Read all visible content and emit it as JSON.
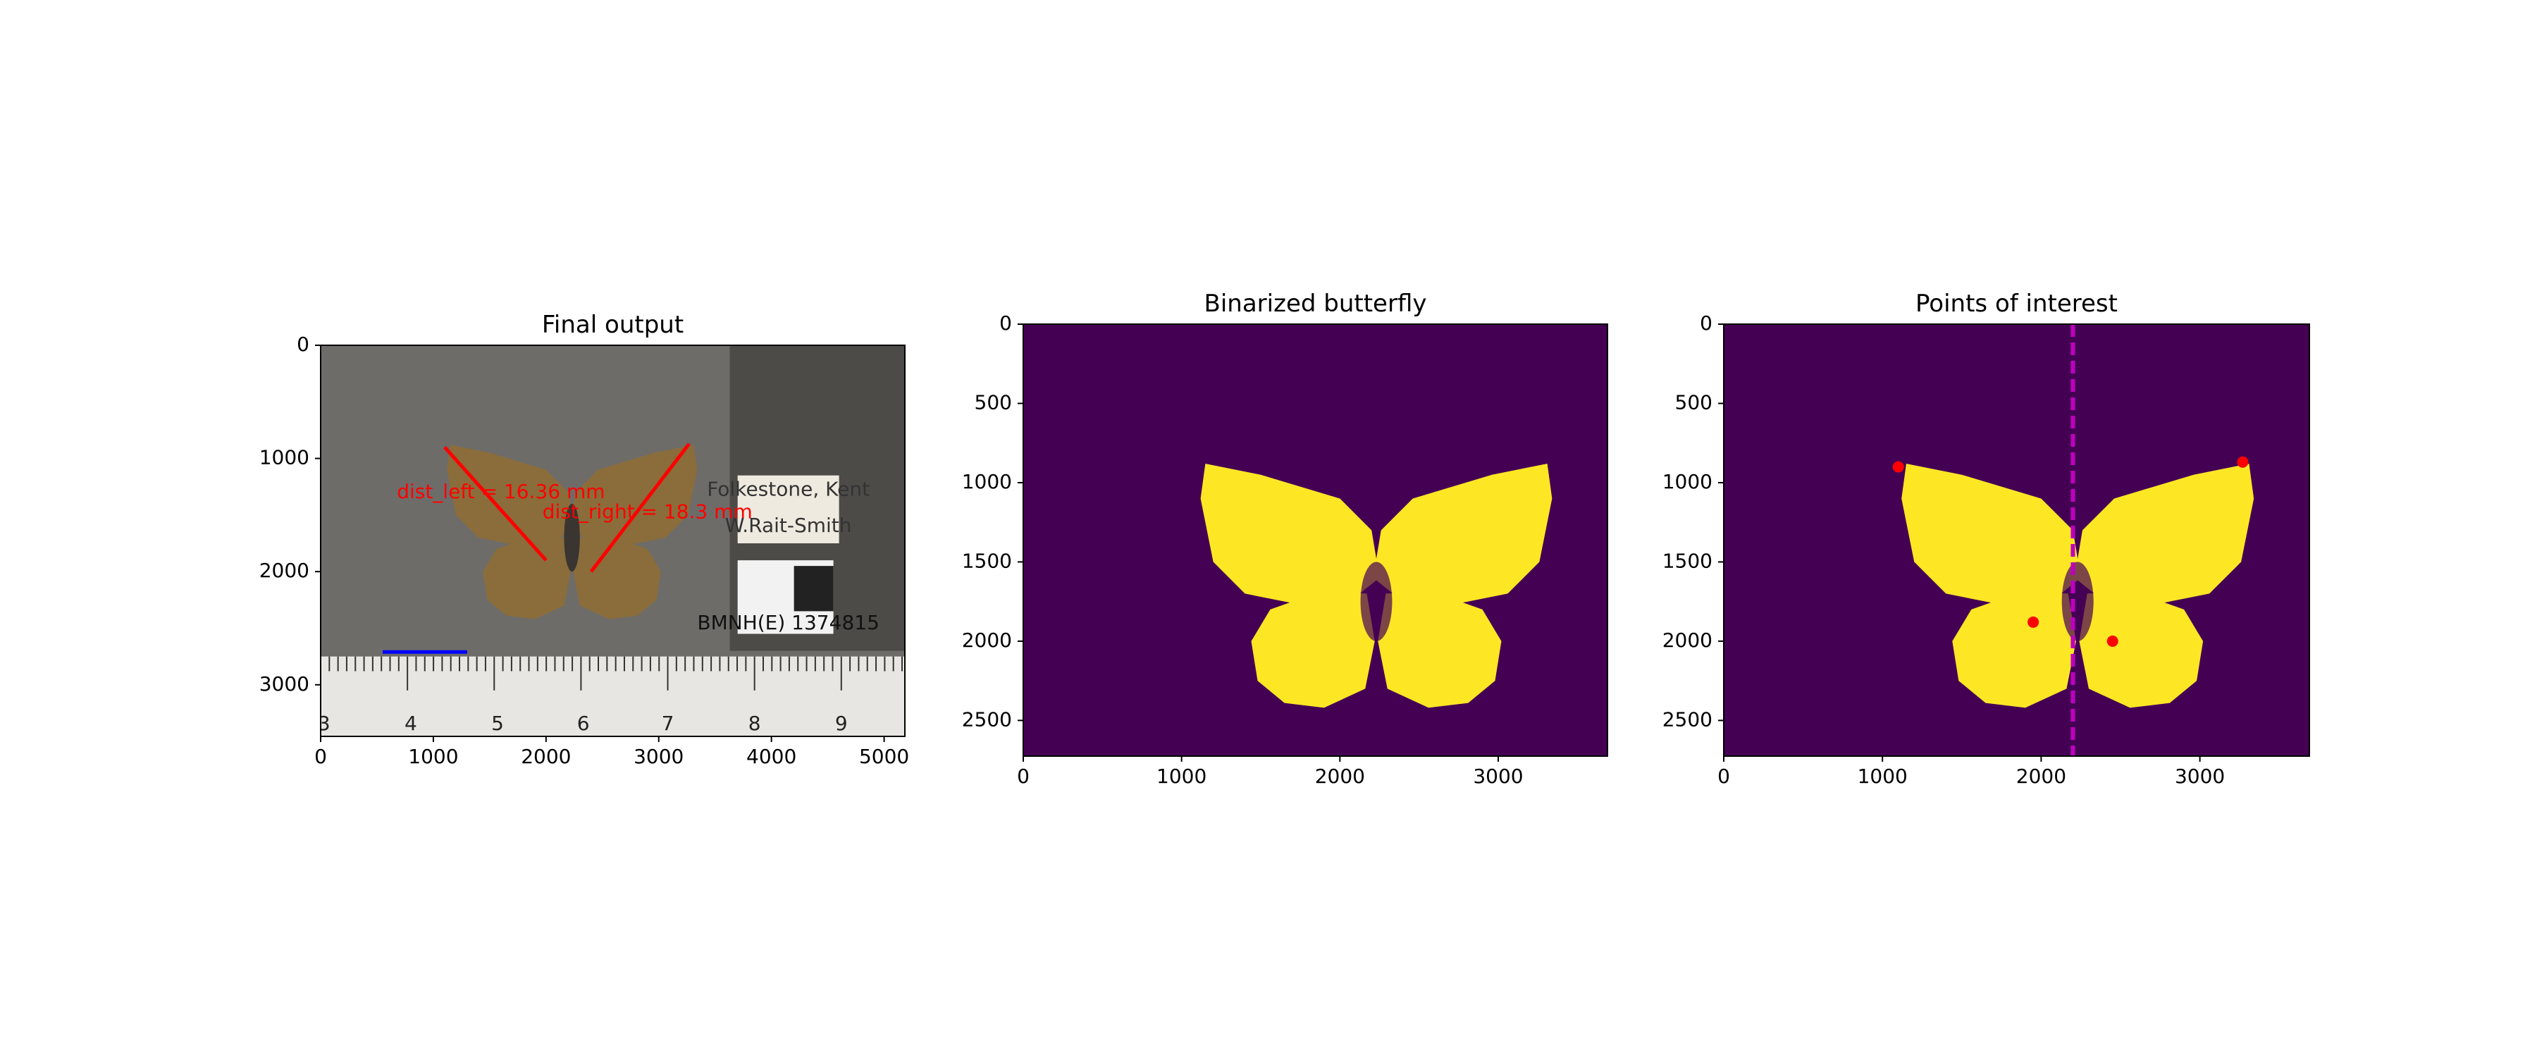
{
  "chart_data": [
    {
      "type": "photo",
      "title": "Final output",
      "xlim": [
        0,
        5184
      ],
      "ylim": [
        3456,
        0
      ],
      "xticks": [
        0,
        1000,
        2000,
        3000,
        4000,
        5000
      ],
      "yticks": [
        0,
        1000,
        2000,
        3000
      ],
      "segments": [
        {
          "x": [
            1100,
            2000
          ],
          "y": [
            900,
            1900
          ],
          "color": "#ff0000"
        },
        {
          "x": [
            3270,
            2400
          ],
          "y": [
            870,
            2000
          ],
          "color": "#ff0000"
        },
        {
          "x": [
            550,
            1300
          ],
          "y": [
            2710,
            2710
          ],
          "color": "#0000ff"
        }
      ],
      "annotations": [
        {
          "text": "dist_left = 16.36 mm",
          "x": 1600,
          "y": 1300,
          "color": "#ff0000"
        },
        {
          "text": "dist_right = 18.3 mm",
          "x": 2900,
          "y": 1480,
          "color": "#ff0000"
        },
        {
          "text": "Folkestone, Kent",
          "x": 4150,
          "y": 1280,
          "color": "#333333"
        },
        {
          "text": "W.Rait-Smith",
          "x": 4150,
          "y": 1600,
          "color": "#333333"
        },
        {
          "text": "BMNH(E) 1374815",
          "x": 4150,
          "y": 2460,
          "color": "#111111"
        },
        {
          "text": "3",
          "x": 30,
          "y": 3350,
          "color": "#222222"
        },
        {
          "text": "4",
          "x": 800,
          "y": 3350,
          "color": "#222222"
        },
        {
          "text": "5",
          "x": 1570,
          "y": 3350,
          "color": "#222222"
        },
        {
          "text": "6",
          "x": 2330,
          "y": 3350,
          "color": "#222222"
        },
        {
          "text": "7",
          "x": 3080,
          "y": 3350,
          "color": "#222222"
        },
        {
          "text": "8",
          "x": 3850,
          "y": 3350,
          "color": "#222222"
        },
        {
          "text": "9",
          "x": 4620,
          "y": 3350,
          "color": "#222222"
        }
      ]
    },
    {
      "type": "binary",
      "title": "Binarized butterfly",
      "xlim": [
        0,
        3690
      ],
      "ylim": [
        2725,
        0
      ],
      "xticks": [
        0,
        1000,
        2000,
        3000
      ],
      "yticks": [
        0,
        500,
        1000,
        1500,
        2000,
        2500
      ],
      "colors": [
        "#440154",
        "#fde725"
      ]
    },
    {
      "type": "binary",
      "title": "Points of interest",
      "xlim": [
        0,
        3690
      ],
      "ylim": [
        2725,
        0
      ],
      "xticks": [
        0,
        1000,
        2000,
        3000
      ],
      "yticks": [
        0,
        500,
        1000,
        1500,
        2000,
        2500
      ],
      "colors": [
        "#440154",
        "#fde725"
      ],
      "points": {
        "x": [
          1100,
          3270,
          1950,
          2450
        ],
        "y": [
          900,
          870,
          1880,
          2000
        ],
        "color": "#ff0000"
      },
      "vline": {
        "x": 2200,
        "color": "#bf00bf"
      }
    }
  ]
}
